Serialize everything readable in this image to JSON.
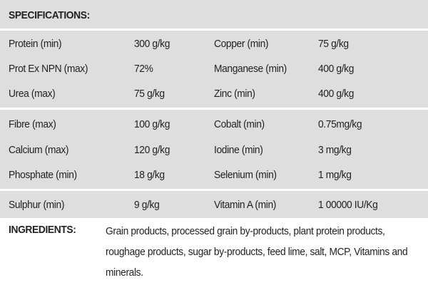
{
  "header": {
    "title": "SPECIFICATIONS:"
  },
  "table": {
    "rows": [
      [
        "Protein (min)",
        "300 g/kg",
        "Copper (min)",
        "75 g/kg"
      ],
      [
        "Prot Ex NPN (max)",
        "72%",
        "Manganese (min)",
        "400 g/kg"
      ],
      [
        "Urea (max)",
        "75 g/kg",
        "Zinc (min)",
        "400 g/kg"
      ],
      [
        "Fibre (max)",
        "100 g/kg",
        "Cobalt (min)",
        "0.75mg/kg"
      ],
      [
        "Calcium (max)",
        "120 g/kg",
        "Iodine (min)",
        "3 mg/kg"
      ],
      [
        "Phosphate (min)",
        "18 g/kg",
        "Selenium (min)",
        "1 mg/kg"
      ],
      [
        "Sulphur (min)",
        "9 g/kg",
        "Vitamin A (min)",
        "1 00000 IU/Kg"
      ]
    ]
  },
  "ingredients": {
    "label": "INGREDIENTS:",
    "lines": [
      "Grain products, processed grain by-products, plant protein products,",
      "roughage products, sugar by-products, feed lime, salt, MCP, Vitamins and",
      "minerals."
    ]
  }
}
